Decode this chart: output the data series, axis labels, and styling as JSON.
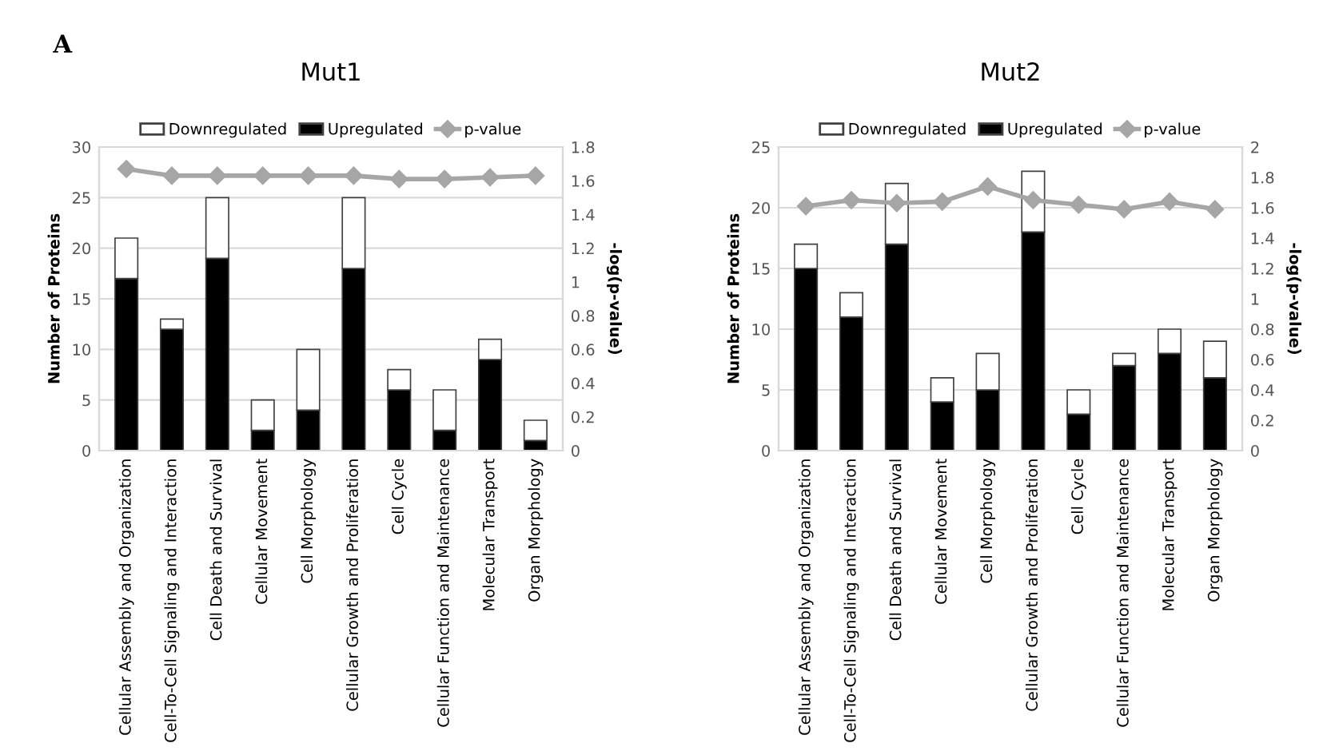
{
  "chart_data": [
    {
      "type": "bar",
      "title": "Mut1",
      "ylabel": "Number of Proteins",
      "y2label": "-log(p-value)",
      "annotations": [
        "A"
      ],
      "categories": [
        "Cellular Assembly and Organization",
        "Cell-To-Cell Signaling and Interaction",
        "Cell Death and Survival",
        "Cellular Movement",
        "Cell Morphology",
        "Cellular Growth and Proliferation",
        "Cell Cycle",
        "Cellular Function and Maintenance",
        "Molecular Transport",
        "Organ Morphology"
      ],
      "stacked": true,
      "legend": "top",
      "grid": "y",
      "ylim": [
        0,
        30
      ],
      "yticks": [
        0,
        5,
        10,
        15,
        20,
        25,
        30
      ],
      "y2lim": [
        0,
        1.8
      ],
      "y2ticks": [
        0,
        0.2,
        0.4,
        0.6,
        0.8,
        1,
        1.2,
        1.4,
        1.6,
        1.8
      ],
      "series": [
        {
          "name": "Upregulated",
          "color": "#000000",
          "values": [
            17,
            12,
            19,
            2,
            4,
            18,
            6,
            2,
            9,
            1
          ]
        },
        {
          "name": "Downregulated",
          "color": "#ffffff",
          "values": [
            4,
            1,
            6,
            3,
            6,
            7,
            2,
            4,
            2,
            2
          ]
        },
        {
          "name": "p-value",
          "type": "line",
          "axis": "y2",
          "color": "#a6a6a6",
          "marker": "diamond",
          "values": [
            1.67,
            1.63,
            1.63,
            1.63,
            1.63,
            1.63,
            1.61,
            1.61,
            1.62,
            1.63
          ]
        }
      ]
    },
    {
      "type": "bar",
      "title": "Mut2",
      "ylabel": "Number of Proteins",
      "y2label": "-log(p-value)",
      "categories": [
        "Cellular Assembly and Organization",
        "Cell-To-Cell Signaling and Interaction",
        "Cell Death and Survival",
        "Cellular Movement",
        "Cell Morphology",
        "Cellular Growth and Proliferation",
        "Cell Cycle",
        "Cellular Function and Maintenance",
        "Molecular Transport",
        "Organ Morphology"
      ],
      "stacked": true,
      "legend": "top",
      "grid": "y",
      "ylim": [
        0,
        25
      ],
      "yticks": [
        0,
        5,
        10,
        15,
        20,
        25
      ],
      "y2lim": [
        0,
        2
      ],
      "y2ticks": [
        0,
        0.2,
        0.4,
        0.6,
        0.8,
        1,
        1.2,
        1.4,
        1.6,
        1.8,
        2
      ],
      "series": [
        {
          "name": "Upregulated",
          "color": "#000000",
          "values": [
            15,
            11,
            17,
            4,
            5,
            18,
            3,
            7,
            8,
            6
          ]
        },
        {
          "name": "Downregulated",
          "color": "#ffffff",
          "values": [
            2,
            2,
            5,
            2,
            3,
            5,
            2,
            1,
            2,
            3
          ]
        },
        {
          "name": "p-value",
          "type": "line",
          "axis": "y2",
          "color": "#a6a6a6",
          "marker": "diamond",
          "values": [
            1.61,
            1.65,
            1.63,
            1.64,
            1.74,
            1.65,
            1.62,
            1.59,
            1.64,
            1.59
          ]
        }
      ]
    }
  ]
}
